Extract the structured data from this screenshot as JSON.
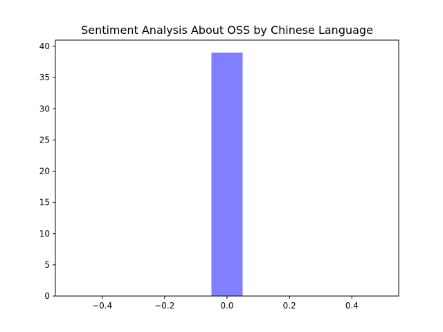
{
  "chart_data": {
    "type": "histogram",
    "title": "Sentiment Analysis About OSS by Chinese Language",
    "xlabel": "",
    "ylabel": "",
    "xlim": [
      -0.55,
      0.55
    ],
    "ylim": [
      0,
      41
    ],
    "bins": [
      {
        "x_start": -0.05,
        "x_end": 0.05,
        "count": 39
      }
    ],
    "bar_color": "#8080ff",
    "x_ticks": [
      {
        "value": -0.4,
        "label": "−0.4"
      },
      {
        "value": -0.2,
        "label": "−0.2"
      },
      {
        "value": 0.0,
        "label": "0.0"
      },
      {
        "value": 0.2,
        "label": "0.2"
      },
      {
        "value": 0.4,
        "label": "0.4"
      }
    ],
    "y_ticks": [
      {
        "value": 0,
        "label": "0"
      },
      {
        "value": 5,
        "label": "5"
      },
      {
        "value": 10,
        "label": "10"
      },
      {
        "value": 15,
        "label": "15"
      },
      {
        "value": 20,
        "label": "20"
      },
      {
        "value": 25,
        "label": "25"
      },
      {
        "value": 30,
        "label": "30"
      },
      {
        "value": 35,
        "label": "35"
      },
      {
        "value": 40,
        "label": "40"
      }
    ],
    "grid": false,
    "legend": "none"
  }
}
